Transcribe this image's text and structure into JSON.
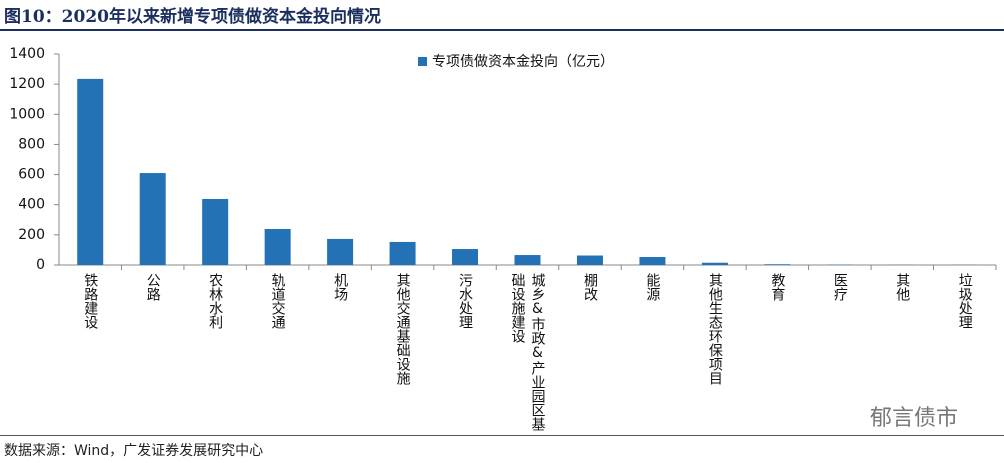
{
  "chart_data": {
    "type": "bar",
    "title": "图10：2020年以来新增专项债做资本金投向情况",
    "legend": "专项债做资本金投向（亿元）",
    "source": "数据来源：Wind，广发证券发展研究中心",
    "watermark": "郁言债市",
    "categories": [
      "铁路建设",
      "公路",
      "农林水利",
      "轨道交通",
      "机场",
      "其他交通基础设施",
      "污水处理",
      "城乡&市政&产业园区基础设施建设",
      "棚改",
      "能源",
      "其他生态环保项目",
      "教育",
      "医疗",
      "其他",
      "垃圾处理"
    ],
    "values": [
      1235,
      610,
      438,
      239,
      173,
      153,
      106,
      66,
      63,
      53,
      15,
      5,
      2,
      1,
      1
    ],
    "color": "#2372b6",
    "ylim": [
      0,
      1400
    ],
    "yticks": [
      0,
      200,
      400,
      600,
      800,
      1000,
      1200,
      1400
    ]
  }
}
